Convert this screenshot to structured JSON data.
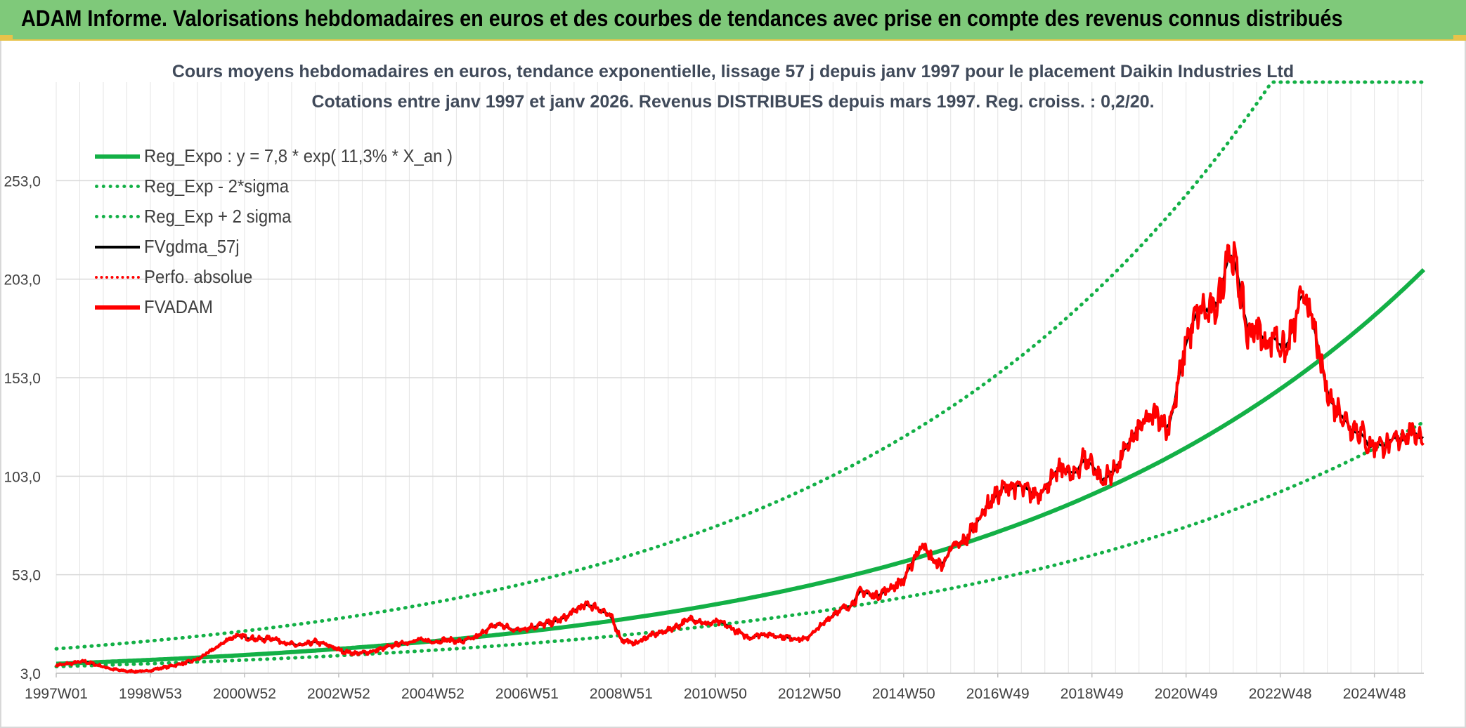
{
  "banner": {
    "title": "ADAM Informe. Valorisations hebdomadaires en euros et des courbes de tendances avec prise en compte des revenus connus distribués"
  },
  "colors": {
    "banner_bg": "#7fc97a",
    "green": "#13b046",
    "red": "#ff0000",
    "black": "#000000",
    "grid": "#d9d9d9"
  },
  "chart_data": {
    "type": "line",
    "title_line1": "Cours moyens hebdomadaires en euros, tendance exponentielle, lissage 57 j depuis janv 1997 pour le placement Daikin Industries Ltd",
    "title_line2": "Cotations entre janv 1997 et janv 2026. Revenus DISTRIBUES depuis mars 1997. Reg. croiss. : 0,2/20.",
    "xlabel": "",
    "ylabel": "",
    "x_range_years": [
      1997.0,
      2026.05
    ],
    "ylim": [
      3.0,
      303.0
    ],
    "y_ticks": [
      3.0,
      53.0,
      103.0,
      153.0,
      203.0,
      253.0
    ],
    "y_tick_labels": [
      "3,0",
      "53,0",
      "103,0",
      "153,0",
      "203,0",
      "253,0"
    ],
    "x_ticks": [
      {
        "label": "1997W01",
        "year": 1997.0
      },
      {
        "label": "1998W53",
        "year": 1999.0
      },
      {
        "label": "2000W52",
        "year": 2001.0
      },
      {
        "label": "2002W52",
        "year": 2003.0
      },
      {
        "label": "2004W52",
        "year": 2005.0
      },
      {
        "label": "2006W51",
        "year": 2007.0
      },
      {
        "label": "2008W51",
        "year": 2009.0
      },
      {
        "label": "2010W50",
        "year": 2011.0
      },
      {
        "label": "2012W50",
        "year": 2013.0
      },
      {
        "label": "2014W50",
        "year": 2015.0
      },
      {
        "label": "2016W49",
        "year": 2017.0
      },
      {
        "label": "2018W49",
        "year": 2019.0
      },
      {
        "label": "2020W49",
        "year": 2021.0
      },
      {
        "label": "2022W48",
        "year": 2023.0
      },
      {
        "label": "2024W48",
        "year": 2025.0
      }
    ],
    "legend_position": "top-left",
    "series": [
      {
        "name": "Reg_Expo : y = 7,8 * exp( 11,3% *  X_an )",
        "style": "solid-thick",
        "color": "#13b046",
        "a": 7.8,
        "rate": 0.113,
        "t0": 1997.0
      },
      {
        "name": "Reg_Exp - 2*sigma",
        "style": "dotted",
        "color": "#13b046",
        "a": 6.4,
        "rate": 0.1038,
        "t0": 1997.0
      },
      {
        "name": "Reg_Exp + 2 sigma",
        "style": "dotted",
        "color": "#13b046",
        "a": 15.4,
        "rate": 0.1154,
        "t0": 1997.0,
        "cap": 303.0
      },
      {
        "name": "FVgdma_57j",
        "style": "solid",
        "color": "#000000"
      },
      {
        "name": "Perfo. absolue",
        "style": "dotted",
        "color": "#ff0000"
      },
      {
        "name": "FVADAM",
        "style": "solid-thick",
        "color": "#ff0000",
        "points": [
          [
            1997.0,
            7
          ],
          [
            1997.3,
            8
          ],
          [
            1997.6,
            9
          ],
          [
            1997.9,
            7
          ],
          [
            1998.2,
            5
          ],
          [
            1998.5,
            4
          ],
          [
            1998.9,
            4
          ],
          [
            1999.3,
            6
          ],
          [
            1999.7,
            8
          ],
          [
            2000.0,
            10
          ],
          [
            2000.4,
            16
          ],
          [
            2000.7,
            21
          ],
          [
            2000.9,
            22
          ],
          [
            2001.1,
            21
          ],
          [
            2001.4,
            20
          ],
          [
            2001.6,
            21
          ],
          [
            2001.9,
            18
          ],
          [
            2002.2,
            17
          ],
          [
            2002.5,
            19
          ],
          [
            2002.8,
            17
          ],
          [
            2003.1,
            14
          ],
          [
            2003.4,
            13
          ],
          [
            2003.7,
            14
          ],
          [
            2004.0,
            16
          ],
          [
            2004.3,
            18
          ],
          [
            2004.7,
            20
          ],
          [
            2005.0,
            19
          ],
          [
            2005.3,
            20
          ],
          [
            2005.6,
            19
          ],
          [
            2005.9,
            21
          ],
          [
            2006.2,
            26
          ],
          [
            2006.4,
            28
          ],
          [
            2006.7,
            25
          ],
          [
            2007.0,
            26
          ],
          [
            2007.4,
            28
          ],
          [
            2007.8,
            31
          ],
          [
            2008.1,
            36
          ],
          [
            2008.3,
            38
          ],
          [
            2008.6,
            35
          ],
          [
            2008.8,
            31
          ],
          [
            2009.0,
            20
          ],
          [
            2009.3,
            18
          ],
          [
            2009.6,
            22
          ],
          [
            2009.9,
            24
          ],
          [
            2010.2,
            27
          ],
          [
            2010.5,
            31
          ],
          [
            2010.8,
            28
          ],
          [
            2011.1,
            29
          ],
          [
            2011.4,
            25
          ],
          [
            2011.7,
            21
          ],
          [
            2012.0,
            23
          ],
          [
            2012.3,
            22
          ],
          [
            2012.6,
            21
          ],
          [
            2012.9,
            20
          ],
          [
            2013.2,
            26
          ],
          [
            2013.5,
            33
          ],
          [
            2013.9,
            38
          ],
          [
            2014.1,
            45
          ],
          [
            2014.4,
            42
          ],
          [
            2014.7,
            46
          ],
          [
            2015.0,
            50
          ],
          [
            2015.2,
            60
          ],
          [
            2015.4,
            69
          ],
          [
            2015.6,
            61
          ],
          [
            2015.8,
            57
          ],
          [
            2016.0,
            66
          ],
          [
            2016.3,
            70
          ],
          [
            2016.6,
            82
          ],
          [
            2016.9,
            92
          ],
          [
            2017.2,
            98
          ],
          [
            2017.5,
            97
          ],
          [
            2017.8,
            93
          ],
          [
            2018.1,
            100
          ],
          [
            2018.4,
            108
          ],
          [
            2018.6,
            102
          ],
          [
            2018.8,
            112
          ],
          [
            2019.0,
            110
          ],
          [
            2019.2,
            100
          ],
          [
            2019.5,
            107
          ],
          [
            2019.8,
            120
          ],
          [
            2020.1,
            130
          ],
          [
            2020.4,
            135
          ],
          [
            2020.6,
            126
          ],
          [
            2020.8,
            145
          ],
          [
            2021.0,
            172
          ],
          [
            2021.3,
            188
          ],
          [
            2021.5,
            185
          ],
          [
            2021.7,
            192
          ],
          [
            2021.9,
            220
          ],
          [
            2022.1,
            205
          ],
          [
            2022.3,
            175
          ],
          [
            2022.5,
            178
          ],
          [
            2022.7,
            170
          ],
          [
            2022.9,
            175
          ],
          [
            2023.1,
            165
          ],
          [
            2023.3,
            180
          ],
          [
            2023.5,
            197
          ],
          [
            2023.7,
            180
          ],
          [
            2023.9,
            155
          ],
          [
            2024.1,
            140
          ],
          [
            2024.3,
            135
          ],
          [
            2024.5,
            128
          ],
          [
            2024.7,
            126
          ],
          [
            2024.9,
            118
          ],
          [
            2025.1,
            120
          ],
          [
            2025.3,
            118
          ],
          [
            2025.5,
            122
          ],
          [
            2025.7,
            125
          ],
          [
            2025.9,
            124
          ],
          [
            2026.05,
            124
          ]
        ]
      }
    ]
  }
}
